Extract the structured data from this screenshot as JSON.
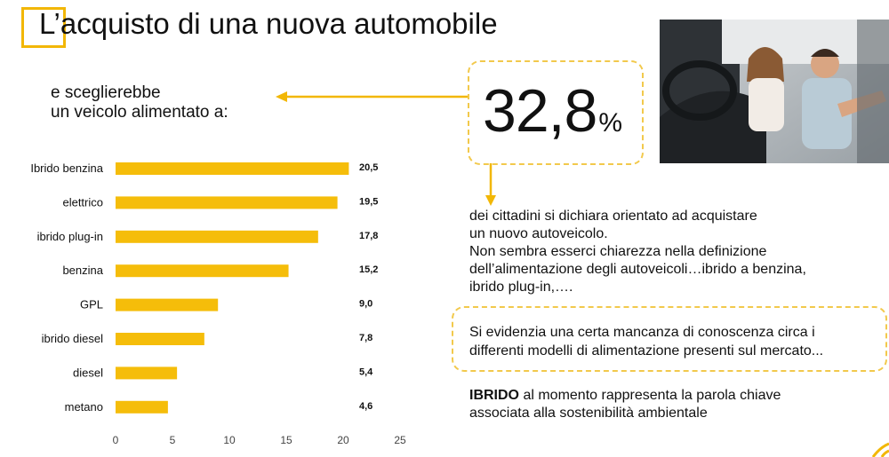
{
  "title": "L’acquisto di una nuova automobile",
  "subtitle_lines": [
    "e sceglierebbe",
    "un veicolo alimentato a:"
  ],
  "highlight": {
    "value": "32,8",
    "unit": "%"
  },
  "description_lines": [
    "dei cittadini si dichiara orientato ad acquistare",
    "un nuovo autoveicolo.",
    "Non sembra esserci chiarezza nella definizione",
    "dell’alimentazione degli autoveicoli…ibrido a benzina,",
    "ibrido plug-in,…."
  ],
  "note_lines": [
    "Si evidenzia una certa mancanza di conoscenza circa i",
    "differenti modelli di alimentazione presenti sul mercato..."
  ],
  "ibrido_note": {
    "keyword": "IBRIDO",
    "line1_rest": " al momento rappresenta la parola chiave",
    "line2": "associata  alla sostenibilità ambientale"
  },
  "colors": {
    "accent": "#f2b705",
    "bar": "#f5bd0a",
    "dashed": "#f2c94c"
  },
  "chart_data": {
    "type": "bar",
    "orientation": "horizontal",
    "categories": [
      "Ibrido benzina",
      "elettrico",
      "ibrido plug-in",
      "benzina",
      "GPL",
      "ibrido diesel",
      "diesel",
      "metano"
    ],
    "values": [
      20.5,
      19.5,
      17.8,
      15.2,
      9.0,
      7.8,
      5.4,
      4.6
    ],
    "value_labels": [
      "20,5",
      "19,5",
      "17,8",
      "15,2",
      "9,0",
      "7,8",
      "5,4",
      "4,6"
    ],
    "xlim": [
      0,
      25
    ],
    "xticks": [
      0,
      5,
      10,
      15,
      20,
      25
    ],
    "grid": false,
    "legend": "none"
  }
}
